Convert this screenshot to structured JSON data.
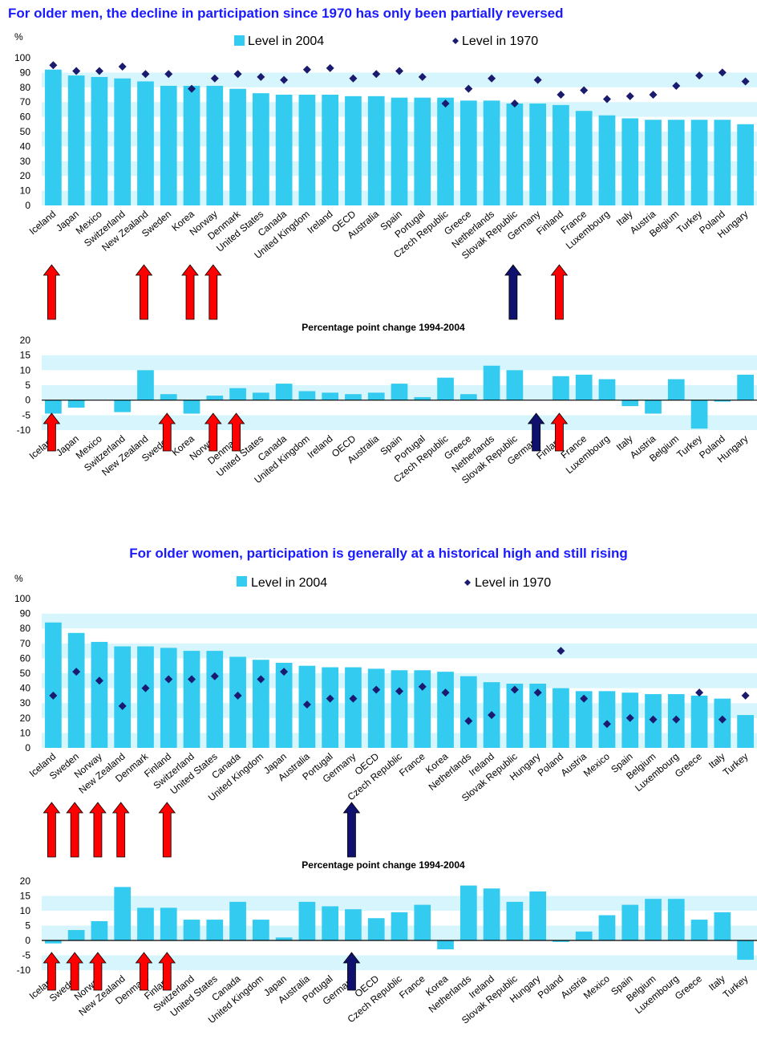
{
  "titles": {
    "men": "For older men, the decline in participation since 1970 has only been partially reversed",
    "women": "For older women, participation is generally at a historical high and still rising"
  },
  "legend": {
    "level_2004": "Level in 2004",
    "level_1970": "Level in 1970"
  },
  "unit_label": "%",
  "change_subtitle": "Percentage point change 1994-2004",
  "colors": {
    "bar": "#33ccf0",
    "band": "#d6f5fc",
    "marker": "#1a1a6e",
    "arrow_up_red": "#ff0000",
    "arrow_up_navy": "#10106e",
    "title": "#1a1aff"
  },
  "chart_data": [
    {
      "id": "men_level",
      "type": "bar",
      "ylim": [
        0,
        100
      ],
      "yticks": [
        0,
        10,
        20,
        30,
        40,
        50,
        60,
        70,
        80,
        90,
        100
      ],
      "categories": [
        "Iceland",
        "Japan",
        "Mexico",
        "Switzerland",
        "New Zealand",
        "Sweden",
        "Korea",
        "Norway",
        "Denmark",
        "United States",
        "Canada",
        "United Kingdom",
        "Ireland",
        "OECD",
        "Australia",
        "Spain",
        "Portugal",
        "Czech Republic",
        "Greece",
        "Netherlands",
        "Slovak Republic",
        "Germany",
        "Finland",
        "France",
        "Luxembourg",
        "Italy",
        "Austria",
        "Belgium",
        "Turkey",
        "Poland",
        "Hungary"
      ],
      "series": [
        {
          "name": "Level in 2004",
          "type": "bar",
          "values": [
            92,
            88,
            87,
            86,
            84,
            81,
            81,
            81,
            79,
            76,
            75,
            75,
            75,
            74,
            74,
            73,
            73,
            73,
            71,
            71,
            69,
            69,
            68,
            64,
            61,
            59,
            58,
            58,
            58,
            58,
            55
          ]
        },
        {
          "name": "Level in 1970",
          "type": "marker",
          "values": [
            95,
            91,
            91,
            94,
            89,
            89,
            79,
            86,
            89,
            87,
            85,
            92,
            93,
            86,
            89,
            91,
            87,
            69,
            79,
            86,
            69,
            85,
            75,
            78,
            72,
            74,
            75,
            81,
            88,
            90,
            84
          ]
        }
      ],
      "up_arrows": [
        {
          "category": "Iceland",
          "color": "red"
        },
        {
          "category": "New Zealand",
          "color": "red"
        },
        {
          "category": "Korea",
          "color": "red"
        },
        {
          "category": "Norway",
          "color": "red"
        },
        {
          "category": "Slovak Republic",
          "color": "navy"
        },
        {
          "category": "Finland",
          "color": "red"
        }
      ]
    },
    {
      "id": "men_change",
      "type": "bar",
      "title": "Percentage point change 1994-2004",
      "ylim": [
        -10,
        20
      ],
      "yticks": [
        -10,
        -5,
        0,
        5,
        10,
        15,
        20
      ],
      "categories": [
        "Iceland",
        "Japan",
        "Mexico",
        "Switzerland",
        "New Zealand",
        "Sweden",
        "Korea",
        "Norway",
        "Denmark",
        "United States",
        "Canada",
        "United Kingdom",
        "Ireland",
        "OECD",
        "Australia",
        "Spain",
        "Portugal",
        "Czech Republic",
        "Greece",
        "Netherlands",
        "Slovak Republic",
        "Germany",
        "Finland",
        "France",
        "Luxembourg",
        "Italy",
        "Austria",
        "Belgium",
        "Turkey",
        "Poland",
        "Hungary"
      ],
      "series": [
        {
          "name": "Percentage point change 1994-2004",
          "type": "bar",
          "values": [
            -4.5,
            -2.5,
            0,
            -4,
            10,
            2,
            -4.5,
            1.5,
            4,
            2.5,
            5.5,
            3,
            2.5,
            2,
            2.5,
            5.5,
            1,
            7.5,
            2,
            11.5,
            10,
            0,
            8,
            8.5,
            7,
            -2,
            -4.5,
            7,
            -9.5,
            -0.5,
            8.5
          ]
        }
      ],
      "up_arrows": [
        {
          "category": "Iceland",
          "color": "red"
        },
        {
          "category": "Sweden",
          "color": "red"
        },
        {
          "category": "Norway",
          "color": "red"
        },
        {
          "category": "Denmark",
          "color": "red"
        },
        {
          "category": "Germany",
          "color": "navy"
        },
        {
          "category": "Finland",
          "color": "red"
        }
      ]
    },
    {
      "id": "women_level",
      "type": "bar",
      "ylim": [
        0,
        100
      ],
      "yticks": [
        0,
        10,
        20,
        30,
        40,
        50,
        60,
        70,
        80,
        90,
        100
      ],
      "categories": [
        "Iceland",
        "Sweden",
        "Norway",
        "New Zealand",
        "Denmark",
        "Finland",
        "Switzerland",
        "United States",
        "Canada",
        "United Kingdom",
        "Japan",
        "Australia",
        "Portugal",
        "Germany",
        "OECD",
        "Czech Republic",
        "France",
        "Korea",
        "Netherlands",
        "Ireland",
        "Slovak Republic",
        "Hungary",
        "Poland",
        "Austria",
        "Mexico",
        "Spain",
        "Belgium",
        "Luxembourg",
        "Greece",
        "Italy",
        "Turkey"
      ],
      "series": [
        {
          "name": "Level in 2004",
          "type": "bar",
          "values": [
            84,
            77,
            71,
            68,
            68,
            67,
            65,
            65,
            61,
            59,
            57,
            55,
            54,
            54,
            53,
            52,
            52,
            51,
            48,
            44,
            43,
            43,
            40,
            38,
            38,
            37,
            36,
            36,
            35,
            33,
            22
          ]
        },
        {
          "name": "Level in 1970",
          "type": "marker",
          "values": [
            35,
            51,
            45,
            28,
            40,
            46,
            46,
            48,
            35,
            46,
            51,
            29,
            33,
            33,
            39,
            38,
            41,
            37,
            18,
            22,
            39,
            37,
            65,
            33,
            16,
            20,
            19,
            19,
            37,
            19,
            35
          ]
        }
      ],
      "up_arrows": [
        {
          "category": "Iceland",
          "color": "red"
        },
        {
          "category": "Sweden",
          "color": "red"
        },
        {
          "category": "Norway",
          "color": "red"
        },
        {
          "category": "New Zealand",
          "color": "red"
        },
        {
          "category": "Finland",
          "color": "red"
        },
        {
          "category": "Germany",
          "color": "navy"
        }
      ]
    },
    {
      "id": "women_change",
      "type": "bar",
      "title": "Percentage point change 1994-2004",
      "ylim": [
        -10,
        20
      ],
      "yticks": [
        -10,
        -5,
        0,
        5,
        10,
        15,
        20
      ],
      "categories": [
        "Iceland",
        "Sweden",
        "Norway",
        "New Zealand",
        "Denmark",
        "Finland",
        "Switzerland",
        "United States",
        "Canada",
        "United Kingdom",
        "Japan",
        "Australia",
        "Portugal",
        "Germany",
        "OECD",
        "Czech Republic",
        "France",
        "Korea",
        "Netherlands",
        "Ireland",
        "Slovak Republic",
        "Hungary",
        "Poland",
        "Austria",
        "Mexico",
        "Spain",
        "Belgium",
        "Luxembourg",
        "Greece",
        "Italy",
        "Turkey"
      ],
      "series": [
        {
          "name": "Percentage point change 1994-2004",
          "type": "bar",
          "values": [
            -1,
            3.5,
            6.5,
            18,
            11,
            11,
            7,
            7,
            13,
            7,
            1,
            13,
            11.5,
            10.5,
            7.5,
            9.5,
            12,
            -3,
            18.5,
            17.5,
            13,
            16.5,
            -0.5,
            3,
            8.5,
            12,
            14,
            14,
            7,
            9.5,
            -6.5
          ]
        }
      ],
      "up_arrows": [
        {
          "category": "Iceland",
          "color": "red"
        },
        {
          "category": "Sweden",
          "color": "red"
        },
        {
          "category": "Norway",
          "color": "red"
        },
        {
          "category": "Denmark",
          "color": "red"
        },
        {
          "category": "Finland",
          "color": "red"
        },
        {
          "category": "Germany",
          "color": "navy"
        }
      ]
    }
  ]
}
